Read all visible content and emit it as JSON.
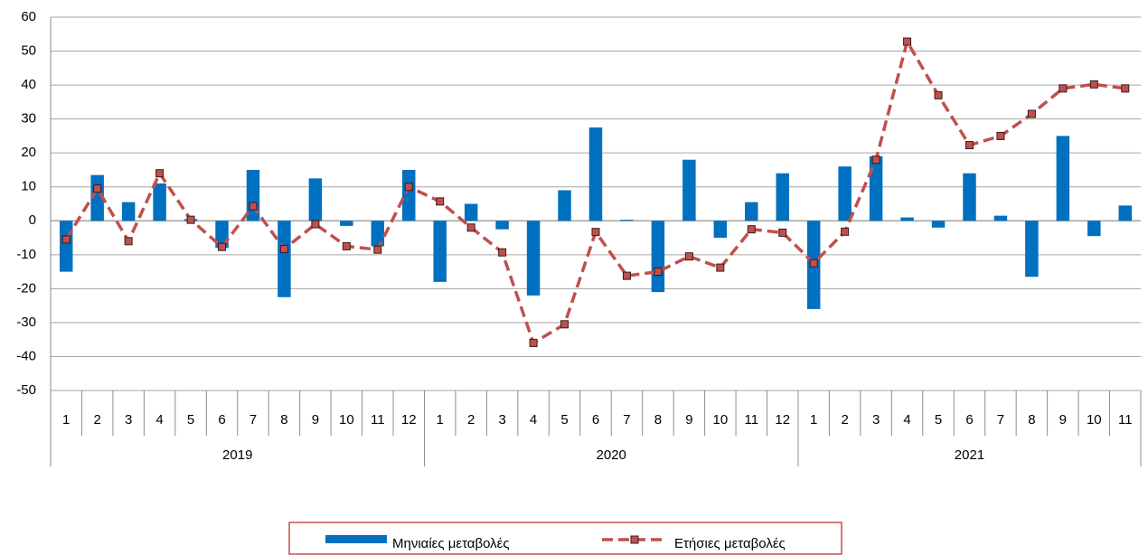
{
  "chart_data": {
    "type": "bar_line",
    "categories": [
      "1",
      "2",
      "3",
      "4",
      "5",
      "6",
      "7",
      "8",
      "9",
      "10",
      "11",
      "12",
      "1",
      "2",
      "3",
      "4",
      "5",
      "6",
      "7",
      "8",
      "9",
      "10",
      "11",
      "12",
      "1",
      "2",
      "3",
      "4",
      "5",
      "6",
      "7",
      "8",
      "9",
      "10",
      "11"
    ],
    "groups": [
      "2019",
      "2020",
      "2021"
    ],
    "series": [
      {
        "name": "Μηνιαίες μεταβολές",
        "type": "bar",
        "color": "#0070c0",
        "values": [
          -15,
          13.5,
          5.5,
          11,
          0.5,
          -8,
          15,
          -22.5,
          12.5,
          -1.5,
          -7.5,
          15,
          -18,
          5,
          -2.5,
          -22,
          9,
          27.5,
          0.3,
          -21,
          18,
          -5,
          5.5,
          14,
          -26,
          16,
          19,
          1,
          -2,
          14,
          1.5,
          -16.5,
          25,
          -4.5,
          4.5
        ]
      },
      {
        "name": "Ετήσιες μεταβολές",
        "type": "line",
        "color": "#c0504d",
        "values": [
          -5.5,
          9.5,
          -6,
          14,
          0.3,
          -7.7,
          4.3,
          -8.3,
          -1,
          -7.5,
          -8.5,
          10,
          5.7,
          -2,
          -9.3,
          -36,
          -30.5,
          -3.3,
          -16.2,
          -15,
          -10.5,
          -13.8,
          -2.5,
          -3.5,
          -12.5,
          -3.2,
          18,
          52.8,
          37,
          22.3,
          25,
          31.5,
          39,
          40.2,
          39
        ]
      }
    ],
    "ylim": [
      -50,
      60
    ],
    "yticks": [
      -50,
      -40,
      -30,
      -20,
      -10,
      0,
      10,
      20,
      30,
      40,
      50,
      60
    ],
    "grid": true,
    "legend": "bottom"
  }
}
